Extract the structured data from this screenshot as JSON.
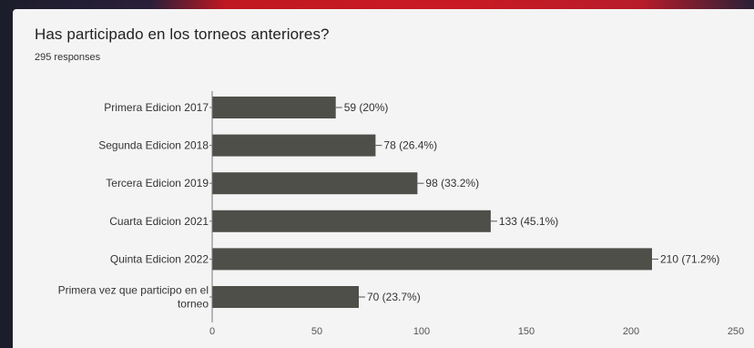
{
  "header": {
    "title": "Has participado en los torneos anteriores?",
    "responses": "295 responses"
  },
  "colors": {
    "bar": "#4f4f4a",
    "card": "#f4f4f4"
  },
  "chart_data": {
    "type": "bar",
    "orientation": "horizontal",
    "title": "Has participado en los torneos anteriores?",
    "subtitle": "295 responses",
    "categories": [
      [
        "Primera Edicion 2017"
      ],
      [
        "Segunda Edicion 2018"
      ],
      [
        "Tercera Edicion 2019"
      ],
      [
        "Cuarta Edicion 2021"
      ],
      [
        "Quinta Edicion 2022"
      ],
      [
        "Primera vez que participo en el",
        "torneo"
      ]
    ],
    "values": [
      59,
      78,
      98,
      133,
      210,
      70
    ],
    "data_labels": [
      "59 (20%)",
      "78 (26.4%)",
      "98 (33.2%)",
      "133 (45.1%)",
      "210 (71.2%)",
      "70 (23.7%)"
    ],
    "xlim": [
      0,
      250
    ],
    "x_ticks": [
      0,
      50,
      100,
      150,
      200,
      250
    ],
    "grid": false,
    "legend": "none"
  }
}
